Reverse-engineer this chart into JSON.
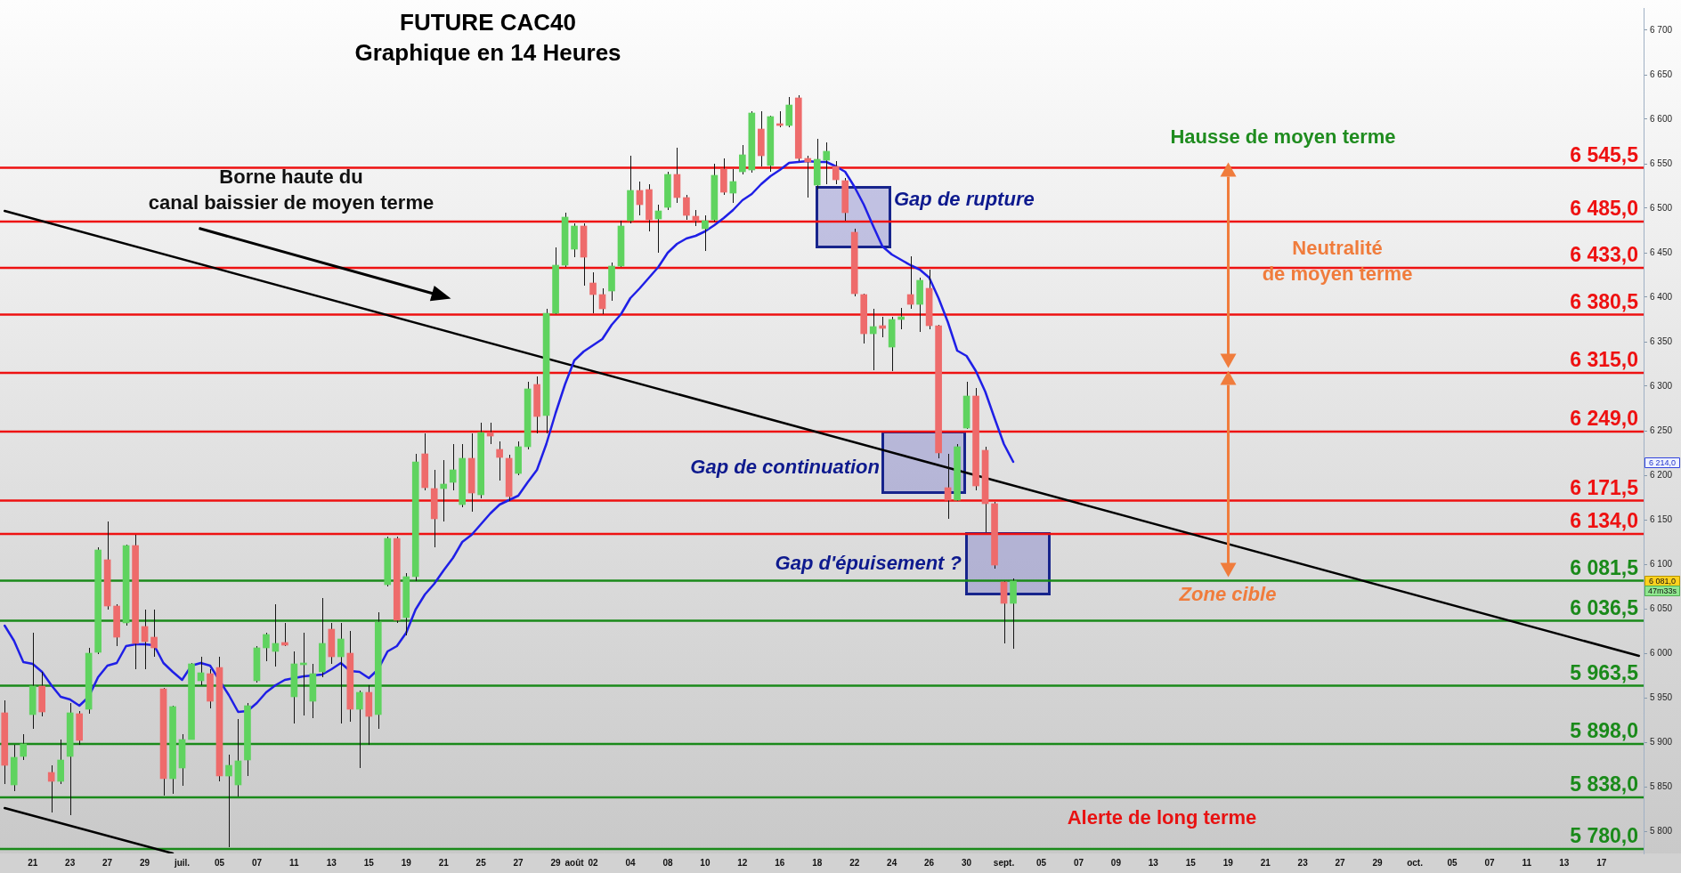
{
  "chart_data": {
    "type": "candlestick",
    "title": "FUTURE CAC40",
    "subtitle": "Graphique en 14 Heures",
    "categories": [
      null,
      null,
      null,
      "21",
      null,
      null,
      null,
      "23",
      null,
      null,
      null,
      "27",
      null,
      null,
      null,
      "29",
      null,
      null,
      null,
      "juil.",
      null,
      null,
      null,
      "05",
      null,
      null,
      null,
      "07",
      null,
      null,
      null,
      "11",
      null,
      null,
      null,
      "13",
      null,
      null,
      null,
      "15",
      null,
      null,
      null,
      "19",
      null,
      null,
      null,
      "21",
      null,
      null,
      null,
      "25",
      null,
      null,
      null,
      "27",
      null,
      null,
      null,
      "29",
      null,
      "août",
      null,
      "02",
      null,
      null,
      null,
      "04",
      null,
      null,
      null,
      "08",
      null,
      null,
      null,
      "10",
      null,
      null,
      null,
      "12",
      null,
      null,
      null,
      "16",
      null,
      null,
      null,
      "18",
      null,
      null,
      null,
      "22",
      null,
      null,
      null,
      "24",
      null,
      null,
      null,
      "26",
      null,
      null,
      null,
      "30",
      null,
      null,
      null,
      "sept.",
      null,
      null,
      null,
      "05",
      null,
      null,
      null,
      "07",
      null,
      null,
      null,
      "09",
      null,
      null,
      null,
      "13",
      null,
      null,
      null,
      "15",
      null,
      null,
      null,
      "19",
      null,
      null,
      null,
      "21",
      null,
      null,
      null,
      "23",
      null,
      null,
      null,
      "27",
      null,
      null,
      null,
      "29",
      null,
      null,
      null,
      "oct.",
      null,
      null,
      null,
      "05",
      null,
      null,
      null,
      "07",
      null,
      null,
      null,
      "11",
      null,
      null,
      null,
      "13",
      null,
      null,
      null,
      "17",
      null,
      null,
      null,
      null
    ],
    "ohlc": [
      [
        5933,
        5947,
        5853,
        5874
      ],
      [
        5852,
        5897,
        5845,
        5883
      ],
      [
        5884,
        5909,
        5880,
        5898
      ],
      [
        5931,
        6023,
        5915,
        5963
      ],
      [
        5963,
        5979,
        5929,
        5934
      ],
      [
        5866,
        5874,
        5821,
        5856
      ],
      [
        5856,
        5903,
        5853,
        5880
      ],
      [
        5884,
        5944,
        5818,
        5933
      ],
      [
        5932,
        5935,
        5897,
        5902
      ],
      [
        5937,
        6006,
        5932,
        6000
      ],
      [
        6001,
        6119,
        5999,
        6116
      ],
      [
        6105,
        6148,
        6049,
        6053
      ],
      [
        6053,
        6055,
        6008,
        6018
      ],
      [
        6034,
        6122,
        6031,
        6121
      ],
      [
        6121,
        6133,
        5982,
        6011
      ],
      [
        6030,
        6049,
        5982,
        6013
      ],
      [
        6018,
        6049,
        5996,
        6006
      ],
      [
        5960,
        5961,
        5840,
        5859
      ],
      [
        5859,
        5941,
        5842,
        5940
      ],
      [
        5871,
        5909,
        5851,
        5903
      ],
      [
        5903,
        5989,
        5903,
        5988
      ],
      [
        5969,
        5996,
        5964,
        5978
      ],
      [
        5977,
        5982,
        5938,
        5946
      ],
      [
        5984,
        5996,
        5856,
        5862
      ],
      [
        5862,
        5886,
        5782,
        5874
      ],
      [
        5852,
        5926,
        5839,
        5879
      ],
      [
        5880,
        5944,
        5862,
        5941
      ],
      [
        5969,
        6008,
        5967,
        6006
      ],
      [
        6006,
        6023,
        5991,
        6021
      ],
      [
        6002,
        6055,
        5985,
        6011
      ],
      [
        6012,
        6034,
        6008,
        6009
      ],
      [
        5951,
        6002,
        5921,
        5988
      ],
      [
        5987,
        6023,
        5930,
        5989
      ],
      [
        5946,
        5988,
        5927,
        5977
      ],
      [
        5979,
        6062,
        5973,
        6011
      ],
      [
        6027,
        6034,
        5988,
        5996
      ],
      [
        5996,
        6034,
        5921,
        6016
      ],
      [
        6000,
        6025,
        5923,
        5937
      ],
      [
        5937,
        5958,
        5871,
        5956
      ],
      [
        5956,
        5964,
        5897,
        5929
      ],
      [
        5931,
        6046,
        5915,
        6035
      ],
      [
        6077,
        6131,
        6075,
        6129
      ],
      [
        6129,
        6131,
        6034,
        6037
      ],
      [
        6040,
        6090,
        6020,
        6086
      ],
      [
        6086,
        6224,
        6081,
        6215
      ],
      [
        6224,
        6247,
        6183,
        6186
      ],
      [
        6185,
        6206,
        6119,
        6151
      ],
      [
        6185,
        6217,
        6148,
        6190
      ],
      [
        6192,
        6235,
        6183,
        6206
      ],
      [
        6167,
        6235,
        6164,
        6219
      ],
      [
        6219,
        6247,
        6159,
        6180
      ],
      [
        6178,
        6259,
        6174,
        6248
      ],
      [
        6248,
        6259,
        6235,
        6244
      ],
      [
        6229,
        6238,
        6194,
        6220
      ],
      [
        6219,
        6223,
        6171,
        6176
      ],
      [
        6202,
        6238,
        6200,
        6232
      ],
      [
        6232,
        6305,
        6229,
        6297
      ],
      [
        6302,
        6311,
        6247,
        6266
      ],
      [
        6267,
        6387,
        6247,
        6382
      ],
      [
        6382,
        6456,
        6381,
        6436
      ],
      [
        6436,
        6495,
        6434,
        6490
      ],
      [
        6454,
        6483,
        6445,
        6480
      ],
      [
        6480,
        6483,
        6413,
        6445
      ],
      [
        6416,
        6428,
        6382,
        6403
      ],
      [
        6403,
        6410,
        6381,
        6387
      ],
      [
        6407,
        6439,
        6396,
        6435
      ],
      [
        6435,
        6486,
        6434,
        6480
      ],
      [
        6486,
        6559,
        6483,
        6520
      ],
      [
        6520,
        6530,
        6492,
        6504
      ],
      [
        6521,
        6527,
        6474,
        6487
      ],
      [
        6488,
        6504,
        6450,
        6497
      ],
      [
        6501,
        6541,
        6498,
        6538
      ],
      [
        6538,
        6568,
        6506,
        6512
      ],
      [
        6512,
        6515,
        6487,
        6492
      ],
      [
        6491,
        6498,
        6480,
        6486
      ],
      [
        6477,
        6492,
        6452,
        6486
      ],
      [
        6487,
        6550,
        6485,
        6537
      ],
      [
        6544,
        6556,
        6515,
        6518
      ],
      [
        6517,
        6544,
        6506,
        6530
      ],
      [
        6541,
        6571,
        6538,
        6560
      ],
      [
        6543,
        6609,
        6540,
        6607
      ],
      [
        6589,
        6609,
        6547,
        6559
      ],
      [
        6548,
        6604,
        6541,
        6603
      ],
      [
        6595,
        6609,
        6591,
        6593
      ],
      [
        6593,
        6625,
        6591,
        6616
      ],
      [
        6624,
        6627,
        6553,
        6556
      ],
      [
        6556,
        6559,
        6512,
        6552
      ],
      [
        6526,
        6578,
        6521,
        6555
      ],
      [
        6554,
        6574,
        6527,
        6564
      ],
      [
        6547,
        6553,
        6527,
        6532
      ],
      [
        6531,
        6534,
        6486,
        6495
      ],
      [
        6473,
        6477,
        6401,
        6404
      ],
      [
        6403,
        6404,
        6348,
        6359
      ],
      [
        6359,
        6387,
        6318,
        6367
      ],
      [
        6368,
        6378,
        6355,
        6365
      ],
      [
        6344,
        6378,
        6317,
        6375
      ],
      [
        6375,
        6388,
        6364,
        6378
      ],
      [
        6403,
        6446,
        6387,
        6392
      ],
      [
        6392,
        6422,
        6361,
        6419
      ],
      [
        6410,
        6431,
        6364,
        6368
      ],
      [
        6368,
        6369,
        6219,
        6225
      ],
      [
        6186,
        6224,
        6151,
        6172
      ],
      [
        6172,
        6235,
        6171,
        6232
      ],
      [
        6253,
        6305,
        6252,
        6289
      ],
      [
        6289,
        6298,
        6183,
        6188
      ],
      [
        6228,
        6232,
        6136,
        6168
      ],
      [
        6168,
        6170,
        6095,
        6099
      ],
      [
        6080,
        6081,
        6011,
        6056
      ],
      [
        6056,
        6084,
        6005,
        6081
      ],
      null,
      null,
      null,
      null,
      null,
      null,
      null,
      null,
      null,
      null,
      null,
      null,
      null,
      null,
      null,
      null,
      null,
      null,
      null,
      null,
      null,
      null,
      null,
      null,
      null,
      null,
      null,
      null,
      null,
      null,
      null,
      null,
      null,
      null,
      null,
      null,
      null,
      null,
      null,
      null,
      null,
      null,
      null,
      null,
      null,
      null,
      null,
      null,
      null,
      null,
      null,
      null,
      null,
      null,
      null,
      null,
      null,
      null,
      null,
      null,
      null,
      null,
      null,
      null,
      null,
      null,
      null
    ],
    "colors": [
      "#ee6b6b",
      "#5fd35f",
      "#5fd35f",
      "#5fd35f",
      "#ee6b6b",
      "#ee6b6b",
      "#5fd35f",
      "#5fd35f",
      "#ee6b6b",
      "#5fd35f",
      "#5fd35f",
      "#ee6b6b",
      "#ee6b6b",
      "#5fd35f",
      "#ee6b6b",
      "#ee6b6b",
      "#ee6b6b",
      "#ee6b6b",
      "#5fd35f",
      "#5fd35f",
      "#5fd35f",
      "#5fd35f",
      "#ee6b6b",
      "#ee6b6b",
      "#5fd35f",
      "#5fd35f",
      "#5fd35f",
      "#5fd35f",
      "#5fd35f",
      "#5fd35f",
      "#ee6b6b",
      "#5fd35f",
      "#5fd35f",
      "#5fd35f",
      "#5fd35f",
      "#ee6b6b",
      "#5fd35f",
      "#ee6b6b",
      "#5fd35f",
      "#ee6b6b",
      "#5fd35f",
      "#5fd35f",
      "#ee6b6b",
      "#5fd35f",
      "#5fd35f",
      "#ee6b6b",
      "#ee6b6b",
      "#5fd35f",
      "#5fd35f",
      "#5fd35f",
      "#ee6b6b",
      "#5fd35f",
      "#ee6b6b",
      "#ee6b6b",
      "#ee6b6b",
      "#5fd35f",
      "#5fd35f",
      "#ee6b6b",
      "#5fd35f",
      "#5fd35f",
      "#5fd35f",
      "#5fd35f",
      "#ee6b6b",
      "#ee6b6b",
      "#ee6b6b",
      "#5fd35f",
      "#5fd35f",
      "#5fd35f",
      "#ee6b6b",
      "#ee6b6b",
      "#5fd35f",
      "#5fd35f",
      "#ee6b6b",
      "#ee6b6b",
      "#ee6b6b",
      "#5fd35f",
      "#5fd35f",
      "#ee6b6b",
      "#5fd35f",
      "#5fd35f",
      "#5fd35f",
      "#ee6b6b",
      "#5fd35f",
      "#ee6b6b",
      "#5fd35f",
      "#ee6b6b",
      "#ee6b6b",
      "#5fd35f",
      "#5fd35f",
      "#ee6b6b",
      "#ee6b6b",
      "#ee6b6b",
      "#ee6b6b",
      "#5fd35f",
      "#ee6b6b",
      "#5fd35f",
      "#5fd35f",
      "#ee6b6b",
      "#5fd35f",
      "#ee6b6b",
      "#ee6b6b",
      "#ee6b6b",
      "#5fd35f",
      "#5fd35f",
      "#ee6b6b",
      "#ee6b6b",
      "#ee6b6b",
      "#ee6b6b",
      "#5fd35f",
      null,
      null,
      null,
      null,
      null,
      null,
      null,
      null,
      null,
      null,
      null,
      null,
      null,
      null,
      null,
      null,
      null,
      null,
      null,
      null,
      null,
      null,
      null,
      null,
      null,
      null,
      null,
      null,
      null,
      null,
      null,
      null,
      null,
      null,
      null,
      null,
      null,
      null,
      null,
      null,
      null,
      null,
      null,
      null,
      null,
      null,
      null,
      null,
      null,
      null,
      null,
      null,
      null,
      null,
      null,
      null,
      null,
      null,
      null,
      null,
      null,
      null,
      null,
      null,
      null,
      null,
      null
    ],
    "series": [
      {
        "type": "line",
        "color": "#1f1fe6",
        "values": [
          6031,
          6014,
          5990,
          5988,
          5979,
          5964,
          5951,
          5948,
          5941,
          5951,
          5973,
          5986,
          5989,
          6008,
          6010,
          6010,
          6009,
          5989,
          5979,
          5970,
          5986,
          5989,
          5986,
          null,
          5953,
          5934,
          5935,
          5944,
          5956,
          5964,
          5970,
          5972,
          5974,
          5975,
          5976,
          5982,
          5989,
          5980,
          5979,
          5972,
          5982,
          6002,
          6008,
          6023,
          6049,
          6066,
          6078,
          6093,
          6107,
          6125,
          6133,
          6145,
          6157,
          6167,
          6172,
          6177,
          6192,
          6206,
          6235,
          6270,
          6302,
          6329,
          6339,
          6346,
          6353,
          6369,
          6381,
          6399,
          6410,
          6422,
          6434,
          6450,
          6460,
          6466,
          6469,
          6474,
          6481,
          6489,
          6498,
          6509,
          6516,
          6527,
          6536,
          6543,
          6551,
          6552,
          6553,
          6552,
          6552,
          6547,
          6541,
          6524,
          6504,
          6480,
          6457,
          6448,
          6442,
          6436,
          6431,
          6422,
          6399,
          6372,
          6340,
          6334,
          6317,
          6294,
          6264,
          6235,
          6215,
          null,
          null,
          null,
          null,
          null,
          null,
          null,
          null,
          null,
          null,
          null,
          null,
          null,
          null,
          null,
          null,
          null,
          null,
          null,
          null,
          null,
          null,
          null,
          null,
          null,
          null,
          null,
          null,
          null,
          null,
          null,
          null,
          null,
          null,
          null,
          null,
          null,
          null,
          null,
          null,
          null,
          null,
          null,
          null,
          null,
          null,
          null,
          null,
          null,
          null,
          null,
          null,
          null,
          null,
          null,
          null,
          null,
          null,
          null,
          null,
          null,
          null,
          null,
          null,
          null,
          null,
          null
        ]
      },
      {
        "type": "line",
        "color": "#000000",
        "values": [
          6497,
          null,
          null,
          null,
          null,
          null,
          null,
          null,
          null,
          null,
          null,
          null,
          null,
          null,
          null,
          null,
          null,
          null,
          null,
          null,
          null,
          null,
          null,
          null,
          null,
          null,
          null,
          null,
          null,
          null,
          null,
          null,
          null,
          null,
          null,
          null,
          null,
          null,
          null,
          null,
          null,
          null,
          null,
          null,
          null,
          null,
          null,
          null,
          null,
          null,
          null,
          null,
          null,
          null,
          null,
          null,
          null,
          null,
          null,
          null,
          null,
          null,
          null,
          null,
          null,
          null,
          null,
          null,
          null,
          null,
          null,
          null,
          null,
          null,
          null,
          null,
          null,
          null,
          null,
          null,
          null,
          null,
          null,
          null,
          null,
          null,
          null,
          null,
          null,
          null,
          null,
          null,
          null,
          null,
          null,
          null,
          null,
          null,
          null,
          null,
          null,
          null,
          null,
          null,
          null,
          null,
          null,
          null,
          null,
          null,
          null,
          null,
          null,
          null,
          null,
          null,
          null,
          null,
          null,
          null,
          null,
          null,
          null,
          null,
          null,
          null,
          null,
          null,
          null,
          null,
          null,
          null,
          null,
          null,
          null,
          null,
          null,
          null,
          null,
          null,
          null,
          null,
          null,
          null,
          null,
          null,
          null,
          null,
          null,
          null,
          null,
          null,
          null,
          null,
          null,
          null,
          null,
          null,
          null,
          null,
          null,
          null,
          null,
          null,
          null,
          null,
          null,
          null,
          null,
          null,
          null,
          null,
          null,
          null,
          null,
          5997
        ]
      },
      {
        "type": "line",
        "color": "#000000",
        "values": [
          5826,
          null,
          null,
          null,
          null,
          null,
          null,
          null,
          null,
          null,
          null,
          null,
          null,
          null,
          null,
          null,
          null,
          null,
          5775,
          null,
          null,
          null,
          null,
          null,
          null,
          null,
          null,
          null,
          null,
          null,
          null,
          null,
          null,
          null,
          null,
          null,
          null,
          null,
          null,
          null,
          null,
          null,
          null,
          null,
          null,
          null,
          null,
          null,
          null,
          null,
          null,
          null,
          null,
          null,
          null,
          null,
          null,
          null,
          null,
          null,
          null,
          null,
          null,
          null,
          null,
          null,
          null,
          null,
          null,
          null,
          null,
          null,
          null,
          null,
          null,
          null,
          null,
          null,
          null,
          null,
          null,
          null,
          null,
          null,
          null,
          null,
          null,
          null,
          null,
          null,
          null,
          null,
          null,
          null,
          null,
          null,
          null,
          null,
          null,
          null,
          null,
          null,
          null,
          null,
          null,
          null,
          null,
          null,
          null,
          null,
          null,
          null,
          null,
          null,
          null,
          null,
          null,
          null,
          null,
          null,
          null,
          null,
          null,
          null,
          null,
          null,
          null,
          null,
          null,
          null,
          null,
          null,
          null,
          null,
          null,
          null,
          null,
          null,
          null,
          null,
          null,
          null,
          null,
          null,
          null,
          null,
          null,
          null,
          null,
          null,
          null,
          null,
          null,
          null,
          null,
          null,
          null,
          null,
          null,
          null,
          null,
          null,
          null,
          null,
          null,
          null,
          null,
          null,
          null,
          null,
          null,
          null,
          null,
          null,
          null,
          null
        ]
      }
    ],
    "ylim": [
      5775,
      6725
    ],
    "yticks": [
      {
        "value": 5800,
        "label": "5 800"
      },
      {
        "value": 5850,
        "label": "5 850"
      },
      {
        "value": 5900,
        "label": "5 900"
      },
      {
        "value": 5950,
        "label": "5 950"
      },
      {
        "value": 6000,
        "label": "6 000"
      },
      {
        "value": 6050,
        "label": "6 050"
      },
      {
        "value": 6100,
        "label": "6 100"
      },
      {
        "value": 6150,
        "label": "6 150"
      },
      {
        "value": 6200,
        "label": "6 200"
      },
      {
        "value": 6250,
        "label": "6 250"
      },
      {
        "value": 6300,
        "label": "6 300"
      },
      {
        "value": 6350,
        "label": "6 350"
      },
      {
        "value": 6400,
        "label": "6 400"
      },
      {
        "value": 6450,
        "label": "6 450"
      },
      {
        "value": 6500,
        "label": "6 500"
      },
      {
        "value": 6550,
        "label": "6 550"
      },
      {
        "value": 6600,
        "label": "6 600"
      },
      {
        "value": 6650,
        "label": "6 650"
      },
      {
        "value": 6700,
        "label": "6 700"
      }
    ],
    "ref_lines": [
      {
        "axis": "y",
        "value": 6545.5,
        "label": "6 545,5",
        "color": "#ee1111"
      },
      {
        "axis": "y",
        "value": 6485,
        "label": "6 485,0",
        "color": "#ee1111"
      },
      {
        "axis": "y",
        "value": 6433,
        "label": "6 433,0",
        "color": "#ee1111"
      },
      {
        "axis": "y",
        "value": 6380.5,
        "label": "6 380,5",
        "color": "#ee1111"
      },
      {
        "axis": "y",
        "value": 6315,
        "label": "6 315,0",
        "color": "#ee1111"
      },
      {
        "axis": "y",
        "value": 6249,
        "label": "6 249,0",
        "color": "#ee1111"
      },
      {
        "axis": "y",
        "value": 6171.5,
        "label": "6 171,5",
        "color": "#ee1111"
      },
      {
        "axis": "y",
        "value": 6134,
        "label": "6 134,0",
        "color": "#ee1111"
      },
      {
        "axis": "y",
        "value": 6081.5,
        "label": "6 081,5",
        "color": "#1a8a1a"
      },
      {
        "axis": "y",
        "value": 6036.5,
        "label": "6 036,5",
        "color": "#1a8a1a"
      },
      {
        "axis": "y",
        "value": 5963.5,
        "label": "5 963,5",
        "color": "#1a8a1a"
      },
      {
        "axis": "y",
        "value": 5898,
        "label": "5 898,0",
        "color": "#1a8a1a"
      },
      {
        "axis": "y",
        "value": 5838,
        "label": "5 838,0",
        "color": "#1a8a1a"
      },
      {
        "axis": "y",
        "value": 5780,
        "label": "5 780,0",
        "color": "#1a8a1a"
      }
    ],
    "annotations": [
      "Borne haute du\ncanal baissier de moyen terme",
      "Gap de rupture",
      "Gap de continuation",
      "Gap d'épuisement ?",
      "Hausse de moyen terme",
      "Neutralité\nde moyen terme",
      "Zone cible",
      "Alerte de long terme",
      {
        "text": "6 214,0",
        "y": 6214
      },
      {
        "text": "6 081,0",
        "y": 6081
      },
      "47m33s"
    ]
  }
}
